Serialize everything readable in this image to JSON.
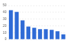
{
  "chart_data": {
    "type": "bar",
    "categories": [
      null,
      null,
      null,
      null,
      null,
      null,
      null,
      null,
      null,
      null
    ],
    "values": [
      43,
      40.5,
      28,
      19,
      17,
      15,
      15,
      14,
      12,
      7.5
    ],
    "color": "#2f6bd6",
    "ylim": [
      0,
      50
    ],
    "yticks": [
      0,
      10,
      20,
      30,
      40,
      50
    ],
    "grid": true,
    "tick_labels": "y"
  }
}
